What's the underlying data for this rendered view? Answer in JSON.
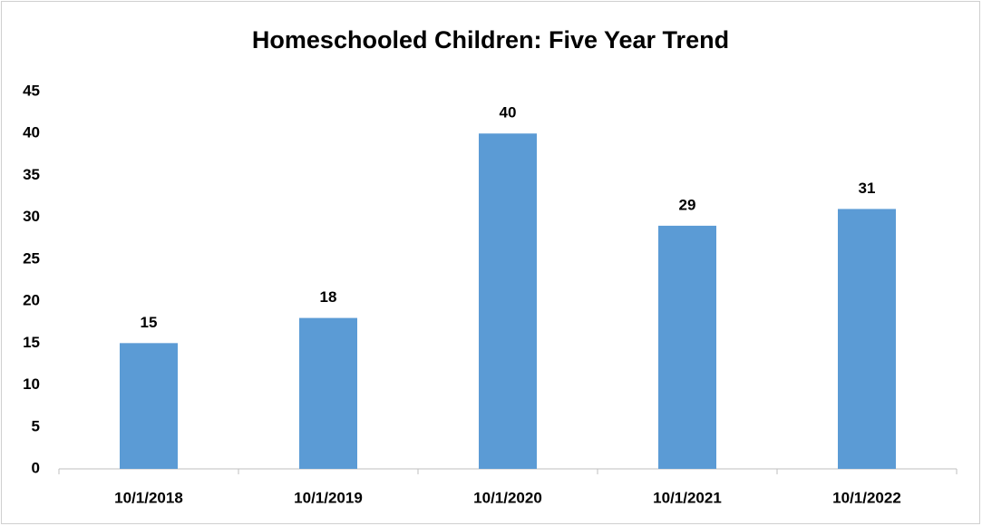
{
  "chart_data": {
    "type": "bar",
    "title": "Homeschooled Children: Five Year Trend",
    "categories": [
      "10/1/2018",
      "10/1/2019",
      "10/1/2020",
      "10/1/2021",
      "10/1/2022"
    ],
    "values": [
      15,
      18,
      40,
      29,
      31
    ],
    "color": "#5b9bd5",
    "ylim": [
      0,
      45
    ],
    "yticks": [
      0,
      5,
      10,
      15,
      20,
      25,
      30,
      35,
      40,
      45
    ],
    "grid": false
  }
}
